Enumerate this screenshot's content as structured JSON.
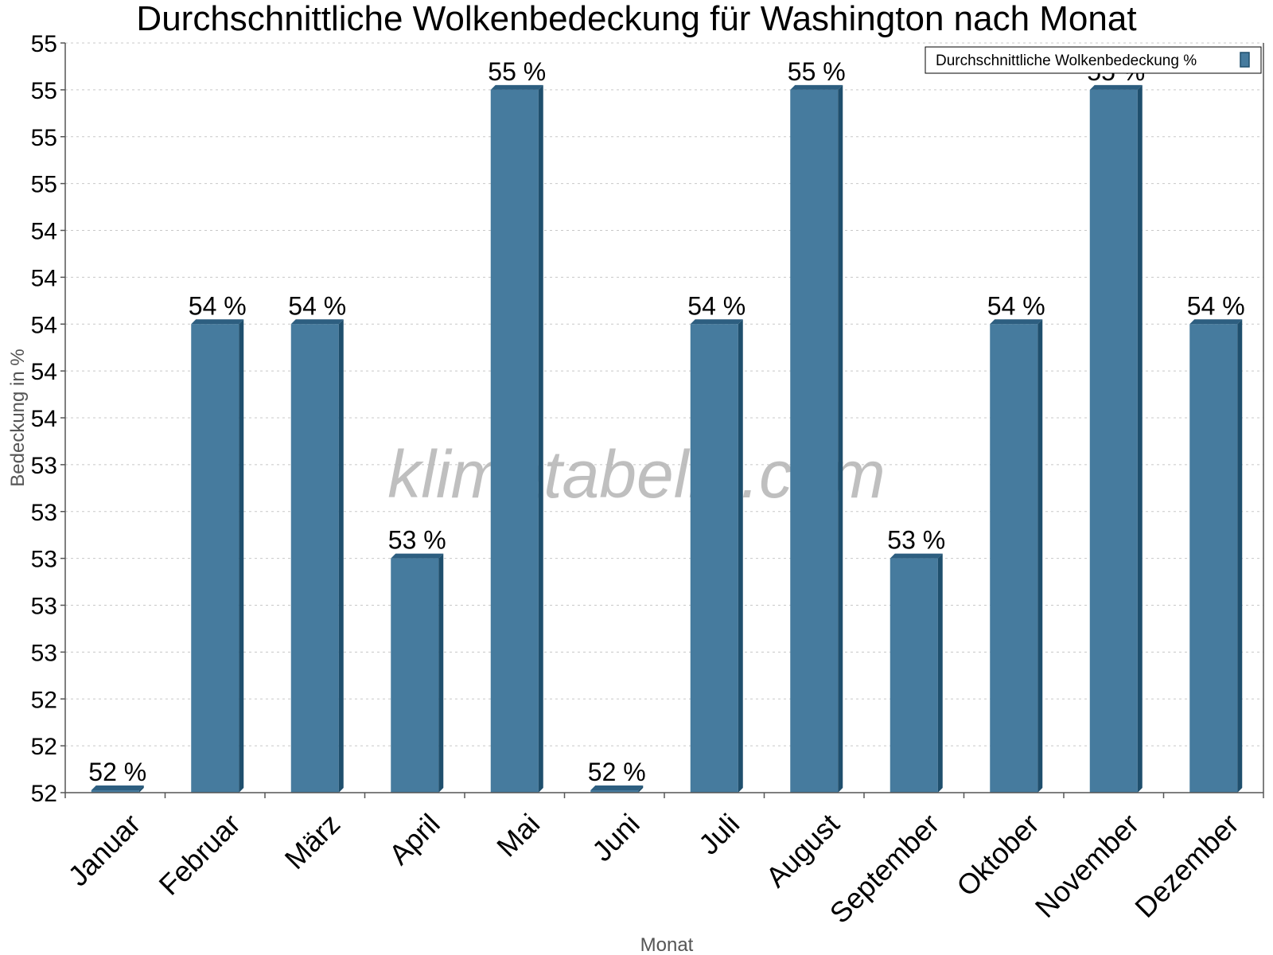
{
  "chart_data": {
    "type": "bar",
    "title": "Durchschnittliche Wolkenbedeckung für Washington nach Monat",
    "xlabel": "Monat",
    "ylabel": "Bedeckung in %",
    "categories": [
      "Januar",
      "Februar",
      "März",
      "April",
      "Mai",
      "Juni",
      "Juli",
      "August",
      "September",
      "Oktober",
      "November",
      "Dezember"
    ],
    "series": [
      {
        "name": "Durchschnittliche Wolkenbedeckung %",
        "values": [
          52,
          54,
          54,
          53,
          55,
          52,
          54,
          55,
          53,
          54,
          55,
          54
        ],
        "data_labels": [
          "52 %",
          "54 %",
          "54 %",
          "53 %",
          "55 %",
          "52 %",
          "54 %",
          "55 %",
          "53 %",
          "54 %",
          "55 %",
          "54 %"
        ]
      }
    ],
    "ylim": [
      52,
      55.2
    ],
    "yticks": [
      52,
      52.2,
      52.4,
      52.6,
      52.8,
      53,
      53.2,
      53.4,
      53.6,
      53.8,
      54,
      54.2,
      54.4,
      54.6,
      54.8,
      55,
      55.2
    ],
    "ytick_labels": [
      "52",
      "52",
      "52",
      "53",
      "53",
      "53",
      "53",
      "53",
      "54",
      "54",
      "54",
      "54",
      "54",
      "55",
      "55",
      "55",
      "55"
    ],
    "grid": true,
    "legend_position": "top-right",
    "colors": {
      "bar": "#467b9e",
      "bar_side": "#1f4f6d",
      "bar_top": "#2d5e80"
    }
  },
  "watermark": "klimatabelle.com"
}
